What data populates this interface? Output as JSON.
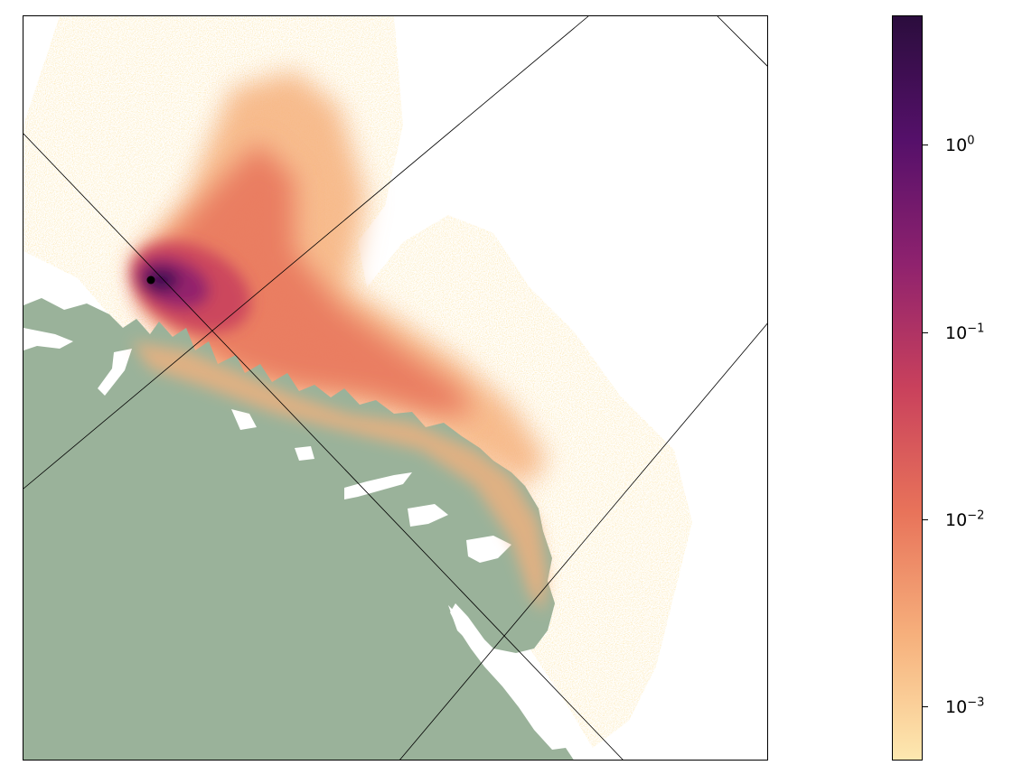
{
  "map": {
    "land_color": "#9ab29a",
    "graticule_color": "#000000",
    "release_point_color": "#000000",
    "ocean_color": "#ffffff"
  },
  "colorbar": {
    "scale": "log",
    "colormap": "magma_r",
    "colors": [
      "#fde8b0",
      "#f6b07c",
      "#e8735a",
      "#c9415c",
      "#8f226e",
      "#55106a",
      "#2b0d3d"
    ],
    "ticks": [
      {
        "base": "10",
        "exponent": "0",
        "value": 1
      },
      {
        "base": "10",
        "exponent": "−1",
        "value": 0.1
      },
      {
        "base": "10",
        "exponent": "−2",
        "value": 0.01
      },
      {
        "base": "10",
        "exponent": "−3",
        "value": 0.001
      }
    ]
  }
}
